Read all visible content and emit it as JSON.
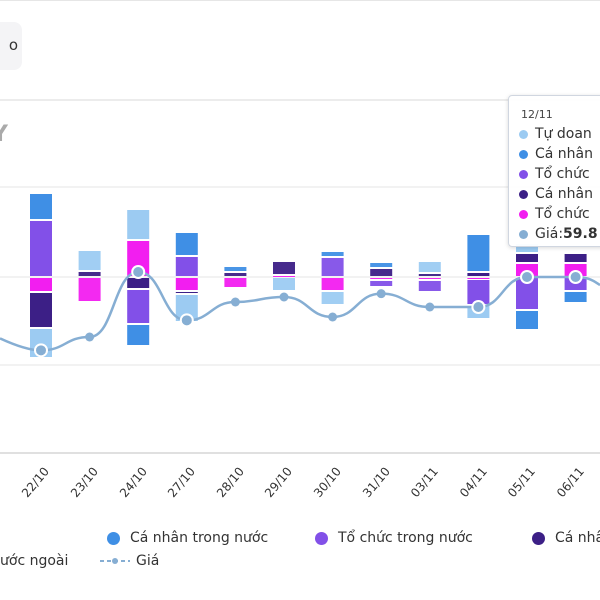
{
  "header": {
    "button_fragment": "o",
    "title_fragment": "Y"
  },
  "colors": {
    "tu_doanh": "#9ccbf2",
    "ca_nhan_trong_nuoc": "#3f8fe5",
    "to_chuc_trong_nuoc": "#8250e8",
    "ca_nhan_nuoc_ngoai": "#3c1f86",
    "to_chuc_nuoc_ngoai": "#f21ef0",
    "gia": "#86aed3"
  },
  "chart_data": {
    "type": "bar",
    "stacked": true,
    "categories": [
      "22/10",
      "23/10",
      "24/10",
      "27/10",
      "28/10",
      "29/10",
      "30/10",
      "31/10",
      "03/11",
      "04/11",
      "05/11",
      "06/11"
    ],
    "series": [
      {
        "key": "to_chuc_nuoc_ngoai",
        "values": [
          -15,
          -25,
          37,
          -14,
          -11,
          2,
          -14,
          -3,
          -3,
          -2,
          14,
          14
        ]
      },
      {
        "key": "ca_nhan_nuoc_ngoai",
        "values": [
          -36,
          6,
          -12,
          -3,
          5,
          14,
          0,
          9,
          4,
          5,
          10,
          10
        ]
      },
      {
        "key": "to_chuc_trong_nuoc",
        "values": [
          57,
          0,
          -35,
          21,
          0,
          0,
          20,
          -7,
          -12,
          -26,
          -33,
          -14
        ]
      },
      {
        "key": "ca_nhan_trong_nuoc",
        "values": [
          27,
          0,
          -22,
          24,
          6,
          0,
          6,
          6,
          0,
          38,
          -20,
          -12
        ]
      },
      {
        "key": "tu_doanh",
        "values": [
          -30,
          21,
          31,
          -28,
          0,
          -14,
          -14,
          0,
          12,
          -14,
          10,
          0
        ]
      }
    ],
    "line": {
      "key": "gia",
      "values": [
        57.6,
        58.0,
        59.95,
        58.5,
        59.05,
        59.2,
        58.6,
        59.3,
        58.9,
        58.9,
        59.8,
        59.8
      ]
    },
    "highlighted": [
      "22/10",
      "24/10",
      "27/10",
      "04/11",
      "05/11",
      "06/11"
    ],
    "grid": true,
    "legend_placement": "bottom"
  },
  "legend": {
    "row1": [
      "Cá nhân trong nước",
      "Tổ chức trong nước",
      "Cá nhâ"
    ],
    "row2": [
      "ước ngoài",
      "Giá"
    ]
  },
  "tooltip": {
    "date": "12/11",
    "rows": [
      "Tự doan",
      "Cá nhân",
      "Tổ chức",
      "Cá nhân",
      "Tổ chức"
    ],
    "price_label": "Giá: ",
    "price_value": "59.8"
  }
}
